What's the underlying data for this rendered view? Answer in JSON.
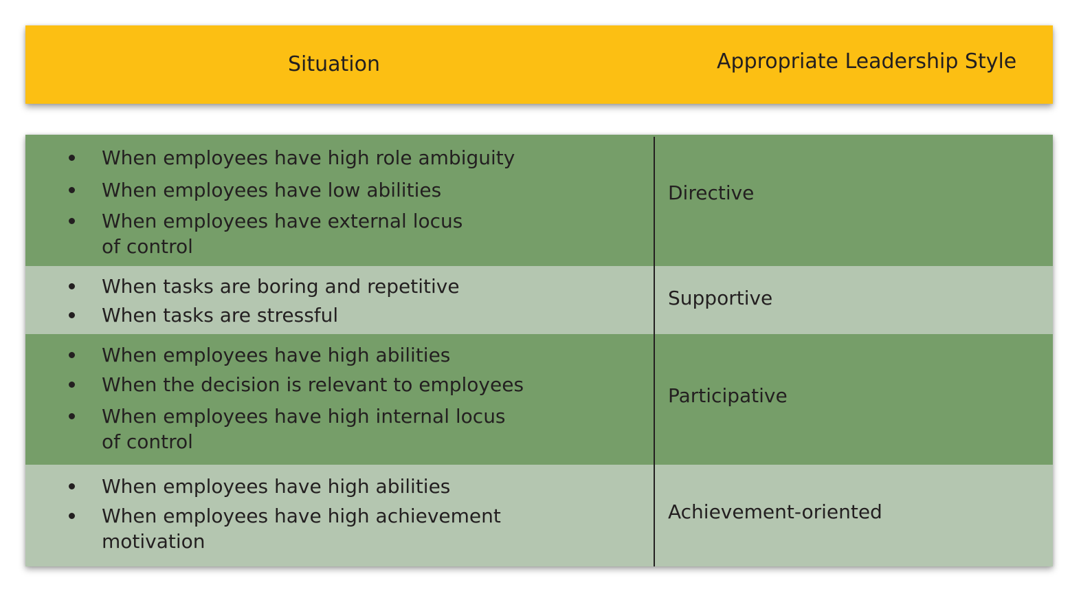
{
  "header": {
    "situation_label": "Situation",
    "style_label": "Appropriate Leadership Style"
  },
  "colors": {
    "header": "#fcbf13",
    "row_dark": "#769e69",
    "row_light": "#b4c6b0",
    "text": "#231f20"
  },
  "rows": [
    {
      "situations": [
        "When employees have high role ambiguity",
        "When employees have low abilities",
        "When employees have external locus of control"
      ],
      "style": "Directive"
    },
    {
      "situations": [
        "When tasks are boring and repetitive",
        "When tasks are stressful"
      ],
      "style": "Supportive"
    },
    {
      "situations": [
        "When employees have high abilities",
        "When the decision is relevant to employees",
        "When employees have high internal locus of control"
      ],
      "style": "Participative"
    },
    {
      "situations": [
        "When employees have high abilities",
        "When employees have high achievement motivation"
      ],
      "style": "Achievement-oriented"
    }
  ]
}
